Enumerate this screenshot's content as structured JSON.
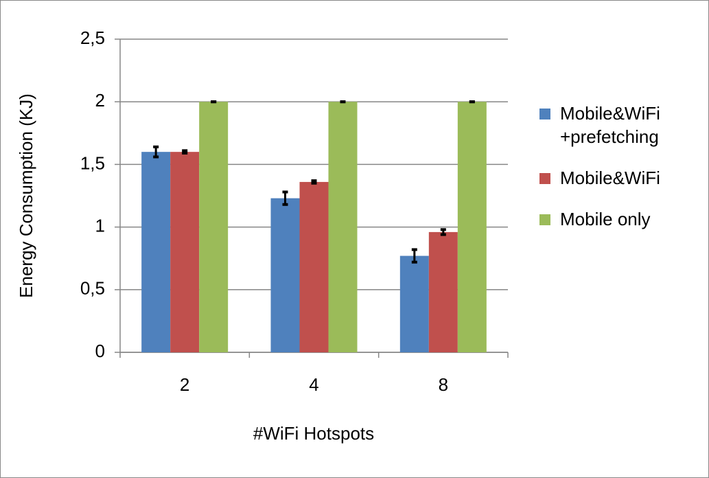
{
  "chart_data": {
    "type": "bar",
    "xlabel": "#WiFi Hotspots",
    "ylabel": "Energy Consumption (KJ)",
    "categories": [
      "2",
      "4",
      "8"
    ],
    "series": [
      {
        "name": "Mobile&WiFi +prefetching",
        "color": "#4f81bd",
        "values": [
          1.6,
          1.23,
          0.77
        ],
        "errors": [
          0.04,
          0.05,
          0.05
        ]
      },
      {
        "name": "Mobile&WiFi",
        "color": "#c0504d",
        "values": [
          1.6,
          1.36,
          0.96
        ],
        "errors": [
          0.01,
          0.01,
          0.02
        ]
      },
      {
        "name": "Mobile only",
        "color": "#9bbb59",
        "values": [
          2,
          2,
          2
        ],
        "errors": [
          0,
          0,
          0
        ]
      }
    ],
    "ylim": [
      0,
      2.5
    ],
    "yticks": [
      0,
      {
        "value": 0.5,
        "label": "0,5"
      },
      1,
      {
        "value": 1.5,
        "label": "1,5"
      },
      2,
      {
        "value": 2.5,
        "label": "2,5"
      }
    ],
    "grid": true,
    "legend": "right"
  }
}
